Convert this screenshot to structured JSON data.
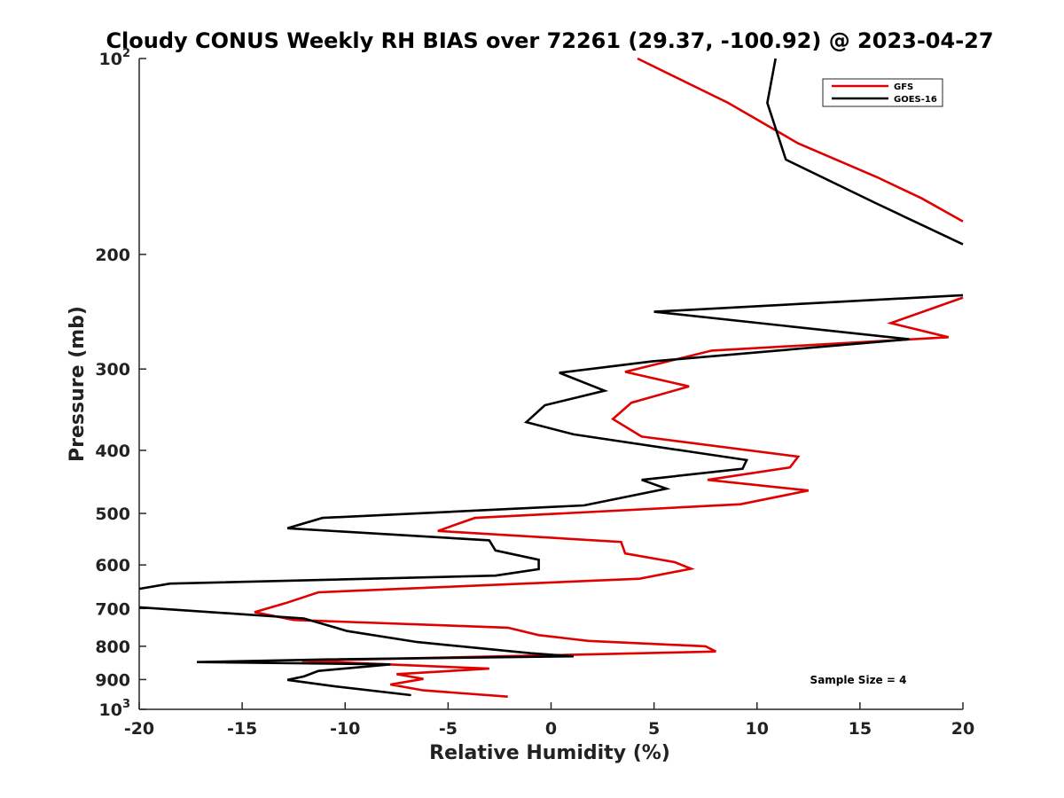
{
  "chart_data": {
    "type": "line",
    "title": "Cloudy CONUS Weekly RH BIAS over 72261 (29.37, -100.92) @ 2023-04-27",
    "xlabel": "Relative Humidity (%)",
    "ylabel": "Pressure (mb)",
    "xlim": [
      -20,
      20
    ],
    "ylim": [
      100,
      1000
    ],
    "yscale": "log",
    "y_reversed": true,
    "grid": false,
    "legend_position": "top-right",
    "x_ticks": [
      "-20",
      "-15",
      "-10",
      "-5",
      "0",
      "5",
      "10",
      "15",
      "20"
    ],
    "y_ticks": [
      {
        "value": 100,
        "base": "10",
        "exp": "2"
      },
      {
        "value": 200,
        "label": "200"
      },
      {
        "value": 300,
        "label": "300"
      },
      {
        "value": 400,
        "label": "400"
      },
      {
        "value": 500,
        "label": "500"
      },
      {
        "value": 600,
        "label": "600"
      },
      {
        "value": 700,
        "label": "700"
      },
      {
        "value": 800,
        "label": "800"
      },
      {
        "value": 900,
        "label": "900"
      },
      {
        "value": 1000,
        "base": "10",
        "exp": "3"
      }
    ],
    "annotation": "Sample Size = 4",
    "series": [
      {
        "name": "GFS",
        "color": "#e00000",
        "points": [
          [
            4.2,
            100
          ],
          [
            8.6,
            117
          ],
          [
            12.0,
            135
          ],
          [
            15.8,
            152
          ],
          [
            18.0,
            164
          ],
          [
            20.0,
            178
          ],
          [
            null,
            null
          ],
          [
            20.0,
            233
          ],
          [
            16.5,
            255
          ],
          [
            19.3,
            268
          ],
          [
            7.8,
            281
          ],
          [
            3.6,
            303
          ],
          [
            6.7,
            319
          ],
          [
            3.9,
            338
          ],
          [
            3.0,
            358
          ],
          [
            4.4,
            381
          ],
          [
            12.0,
            409
          ],
          [
            11.6,
            425
          ],
          [
            7.6,
            444
          ],
          [
            12.5,
            461
          ],
          [
            9.2,
            484
          ],
          [
            -3.7,
            508
          ],
          [
            -5.5,
            532
          ],
          [
            3.4,
            553
          ],
          [
            3.6,
            576
          ],
          [
            6.0,
            594
          ],
          [
            6.8,
            608
          ],
          [
            4.3,
            630
          ],
          [
            -11.3,
            661
          ],
          [
            -12.9,
            687
          ],
          [
            -14.4,
            709
          ],
          [
            -12.5,
            729
          ],
          [
            -2.1,
            749
          ],
          [
            -0.6,
            769
          ],
          [
            1.8,
            785
          ],
          [
            7.5,
            800
          ],
          [
            8.0,
            815
          ],
          [
            -12.1,
            842
          ],
          [
            -3.0,
            866
          ],
          [
            -7.5,
            883
          ],
          [
            -6.2,
            898
          ],
          [
            -7.8,
            916
          ],
          [
            -6.2,
            935
          ],
          [
            -2.1,
            956
          ]
        ]
      },
      {
        "name": "GOES-16",
        "color": "#000000",
        "points": [
          [
            10.9,
            100
          ],
          [
            10.5,
            117
          ],
          [
            11.4,
            143
          ],
          [
            15.8,
            167
          ],
          [
            20.0,
            193
          ],
          [
            null,
            null
          ],
          [
            20.0,
            231
          ],
          [
            5.0,
            245
          ],
          [
            17.4,
            270
          ],
          [
            4.9,
            292
          ],
          [
            0.4,
            304
          ],
          [
            2.6,
            324
          ],
          [
            -0.3,
            341
          ],
          [
            -1.2,
            362
          ],
          [
            1.1,
            378
          ],
          [
            9.5,
            414
          ],
          [
            9.3,
            427
          ],
          [
            4.4,
            444
          ],
          [
            5.6,
            458
          ],
          [
            1.6,
            486
          ],
          [
            -11.1,
            508
          ],
          [
            -12.8,
            527
          ],
          [
            -3.0,
            550
          ],
          [
            -2.7,
            570
          ],
          [
            -0.6,
            589
          ],
          [
            -0.6,
            609
          ],
          [
            -2.7,
            623
          ],
          [
            -18.5,
            641
          ],
          [
            -20.0,
            653
          ],
          [
            null,
            null
          ],
          [
            -20.0,
            697
          ],
          [
            -12.0,
            725
          ],
          [
            -9.9,
            758
          ],
          [
            -6.5,
            788
          ],
          [
            -1.0,
            820
          ],
          [
            1.1,
            829
          ],
          [
            -10.8,
            838
          ],
          [
            -17.2,
            846
          ],
          [
            -7.8,
            853
          ],
          [
            -11.3,
            873
          ],
          [
            -12.0,
            890
          ],
          [
            -12.8,
            901
          ],
          [
            -10.5,
            922
          ],
          [
            -6.8,
            951
          ]
        ]
      }
    ]
  }
}
